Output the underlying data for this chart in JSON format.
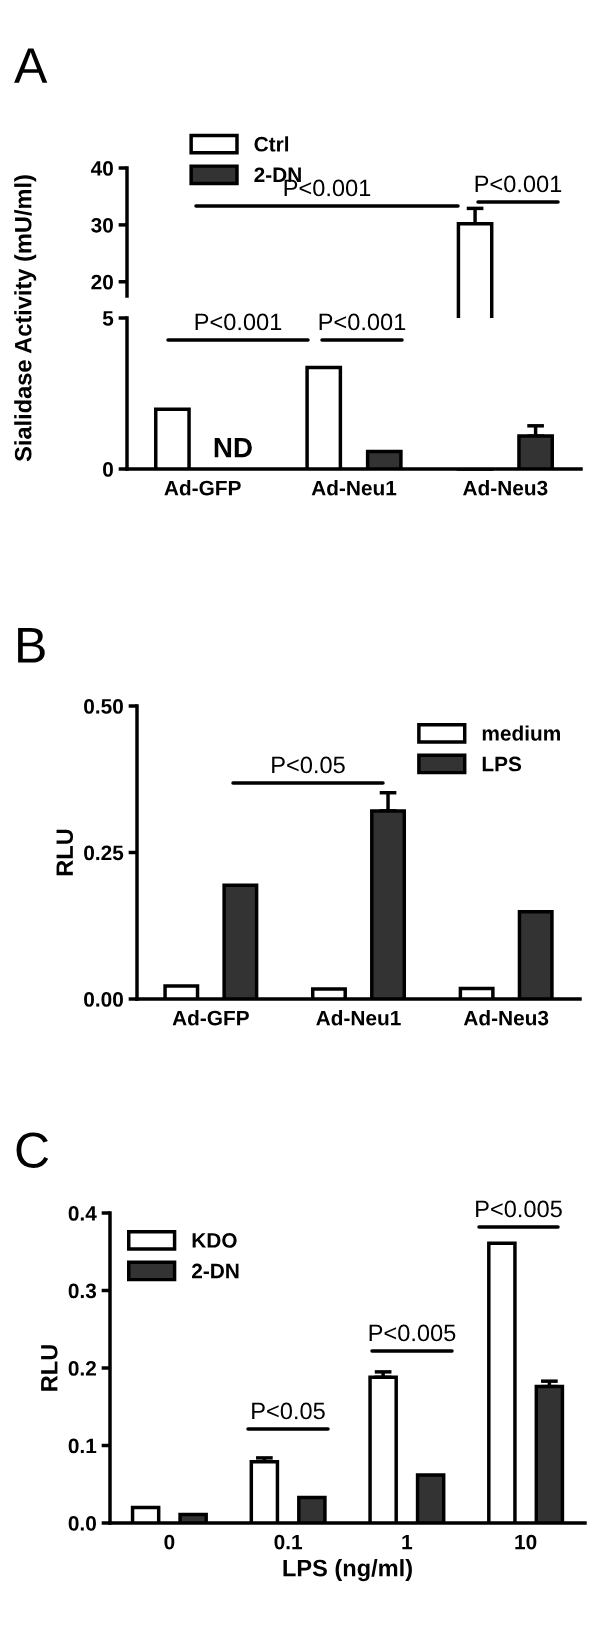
{
  "chart_data": [
    {
      "type": "bar",
      "title": "A",
      "categories": [
        null,
        null,
        null
      ],
      "ylim": [
        17.5,
        40
      ],
      "yticks": [
        20,
        30,
        40
      ],
      "tick_labels": "y",
      "legend": "top left",
      "series": [
        {
          "name": "Ctrl",
          "color": "#ffffff",
          "values": [
            null,
            null,
            30.2
          ],
          "errors": [
            null,
            null,
            2.7
          ]
        },
        {
          "name": "2-DN",
          "color": "#333333",
          "values": [
            null,
            null,
            null
          ]
        }
      ],
      "annotations": [
        "P<0.001",
        "P<0.001"
      ]
    },
    {
      "type": "bar",
      "categories": [
        "Ad-GFP",
        "Ad-Neu1",
        "Ad-Neu3"
      ],
      "ylabel": "Sialidase Activity (mU/ml)",
      "ylim": [
        0,
        5
      ],
      "yticks": [
        0,
        5
      ],
      "series": [
        {
          "color": "#ffffff",
          "values": [
            1.98,
            3.36,
            null
          ]
        },
        {
          "color": "#333333",
          "values": [
            null,
            0.58,
            1.09
          ],
          "errors": [
            null,
            null,
            0.34
          ],
          "value_labels": [
            "ND",
            null,
            null
          ]
        }
      ],
      "annotations": [
        "P<0.001",
        "P<0.001"
      ]
    },
    {
      "type": "bar",
      "title": "B",
      "categories": [
        "Ad-GFP",
        "Ad-Neu1",
        "Ad-Neu3"
      ],
      "ylabel": "RLU",
      "ylim": [
        0,
        0.5
      ],
      "yticks": [
        {
          "value": 0,
          "label": "0.00"
        },
        {
          "value": 0.25,
          "label": "0.25"
        },
        {
          "value": 0.5,
          "label": "0.50"
        }
      ],
      "legend": "top right",
      "series": [
        {
          "name": "medium",
          "color": "#ffffff",
          "values": [
            0.022,
            0.017,
            0.018
          ]
        },
        {
          "name": "LPS",
          "color": "#333333",
          "values": [
            0.194,
            0.321,
            0.149
          ],
          "errors": [
            null,
            0.031,
            null
          ]
        }
      ],
      "annotations": [
        "P<0.05"
      ]
    },
    {
      "type": "bar",
      "title": "C",
      "categories": [
        "0",
        "0.1",
        "1",
        "10"
      ],
      "xlabel": "LPS (ng/ml)",
      "ylabel": "RLU",
      "ylim": [
        0,
        0.4
      ],
      "yticks": [
        {
          "value": 0,
          "label": "0.0"
        },
        0.1,
        0.2,
        0.3,
        0.4
      ],
      "legend": "top left",
      "series": [
        {
          "name": "KDO",
          "color": "#ffffff",
          "values": [
            0.02,
            0.079,
            0.188,
            0.361
          ],
          "errors": [
            null,
            0.005,
            0.007,
            null
          ]
        },
        {
          "name": "2-DN",
          "color": "#333333",
          "values": [
            0.011,
            0.033,
            0.062,
            0.176
          ],
          "errors": [
            null,
            null,
            null,
            0.007
          ]
        }
      ],
      "annotations": [
        "P<0.05",
        "P<0.005",
        "P<0.005"
      ]
    }
  ]
}
